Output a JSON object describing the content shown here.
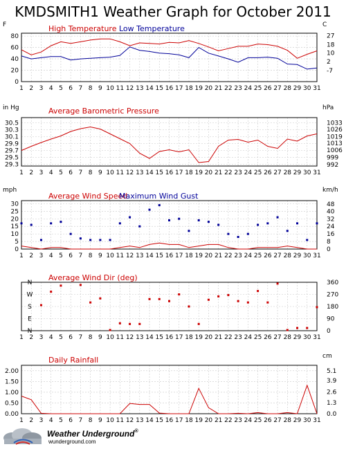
{
  "title": "KMDSMITH1 Weather Graph for October 2011",
  "logo": {
    "brand": "Weather Underground",
    "mark": "®",
    "url": "wunderground.com"
  },
  "colors": {
    "red": "#cc0000",
    "blue": "#000099",
    "frame": "#000000",
    "grid": "#c8c8c8"
  },
  "chart_data": [
    {
      "id": "temperature",
      "type": "line",
      "days": [
        1,
        2,
        3,
        4,
        5,
        6,
        7,
        8,
        9,
        10,
        11,
        12,
        13,
        14,
        15,
        16,
        17,
        18,
        19,
        20,
        21,
        22,
        23,
        24,
        25,
        26,
        27,
        28,
        29,
        30,
        31
      ],
      "left_unit": "F",
      "right_unit": "C",
      "ylim": [
        0,
        85
      ],
      "left_ticks": [
        {
          "v": 0,
          "t": "0"
        },
        {
          "v": 20,
          "t": "20"
        },
        {
          "v": 40,
          "t": "40"
        },
        {
          "v": 60,
          "t": "60"
        },
        {
          "v": 80,
          "t": "80"
        }
      ],
      "right_ticks": [
        {
          "v": 19.4,
          "t": "-7"
        },
        {
          "v": 35,
          "t": "2"
        },
        {
          "v": 50.2,
          "t": "10"
        },
        {
          "v": 64.7,
          "t": "18"
        },
        {
          "v": 80.6,
          "t": "27"
        }
      ],
      "series": [
        {
          "name": "High Temperature",
          "color": "#cc0000",
          "style": "line",
          "values": [
            56,
            47,
            52,
            63,
            70,
            67,
            70,
            73,
            75,
            75,
            70,
            63,
            68,
            67,
            66,
            69,
            68,
            72,
            67,
            61,
            54,
            58,
            62,
            62,
            66,
            65,
            62,
            55,
            41,
            48,
            54
          ]
        },
        {
          "name": "Low Temperature",
          "color": "#000099",
          "style": "line",
          "values": [
            45,
            40,
            42,
            44,
            44,
            38,
            40,
            41,
            42,
            43,
            46,
            61,
            55,
            53,
            50,
            49,
            47,
            42,
            60,
            50,
            45,
            40,
            34,
            42,
            42,
            43,
            41,
            31,
            30,
            22,
            24
          ]
        }
      ]
    },
    {
      "id": "pressure",
      "type": "line",
      "days": [
        1,
        2,
        3,
        4,
        5,
        6,
        7,
        8,
        9,
        10,
        11,
        12,
        13,
        14,
        15,
        16,
        17,
        18,
        19,
        20,
        21,
        22,
        23,
        24,
        25,
        26,
        27,
        28,
        29,
        30,
        31
      ],
      "left_unit": "in Hg",
      "right_unit": "hPa",
      "ylim": [
        29.25,
        30.65
      ],
      "left_ticks": [
        {
          "v": 29.3,
          "t": "29.3"
        },
        {
          "v": 29.5,
          "t": "29.5"
        },
        {
          "v": 29.7,
          "t": "29.7"
        },
        {
          "v": 29.9,
          "t": "29.9"
        },
        {
          "v": 30.1,
          "t": "30.1"
        },
        {
          "v": 30.3,
          "t": "30.3"
        },
        {
          "v": 30.5,
          "t": "30.5"
        }
      ],
      "right_ticks": [
        {
          "v": 29.29,
          "t": "992"
        },
        {
          "v": 29.5,
          "t": "999"
        },
        {
          "v": 29.71,
          "t": "1006"
        },
        {
          "v": 29.91,
          "t": "1013"
        },
        {
          "v": 30.1,
          "t": "1019"
        },
        {
          "v": 30.31,
          "t": "1026"
        },
        {
          "v": 30.5,
          "t": "1033"
        }
      ],
      "series": [
        {
          "name": "Average Barometric Pressure",
          "color": "#cc0000",
          "style": "line",
          "values": [
            29.7,
            29.82,
            29.93,
            30.03,
            30.12,
            30.25,
            30.33,
            30.38,
            30.32,
            30.18,
            30.04,
            29.9,
            29.62,
            29.47,
            29.67,
            29.72,
            29.66,
            29.72,
            29.35,
            29.38,
            29.82,
            30.0,
            30.02,
            29.94,
            30.0,
            29.82,
            29.76,
            30.03,
            29.97,
            30.12,
            30.18
          ]
        }
      ]
    },
    {
      "id": "wind",
      "type": "line",
      "days": [
        1,
        2,
        3,
        4,
        5,
        6,
        7,
        8,
        9,
        10,
        11,
        12,
        13,
        14,
        15,
        16,
        17,
        18,
        19,
        20,
        21,
        22,
        23,
        24,
        25,
        26,
        27,
        28,
        29,
        30,
        31
      ],
      "left_unit": "mph",
      "right_unit": "km/h",
      "ylim": [
        0,
        32
      ],
      "left_ticks": [
        {
          "v": 0,
          "t": "0"
        },
        {
          "v": 5,
          "t": "5"
        },
        {
          "v": 10,
          "t": "10"
        },
        {
          "v": 15,
          "t": "15"
        },
        {
          "v": 20,
          "t": "20"
        },
        {
          "v": 25,
          "t": "25"
        },
        {
          "v": 30,
          "t": "30"
        }
      ],
      "right_ticks": [
        {
          "v": 0,
          "t": "0"
        },
        {
          "v": 5,
          "t": "8"
        },
        {
          "v": 10,
          "t": "16"
        },
        {
          "v": 15,
          "t": "24"
        },
        {
          "v": 20,
          "t": "32"
        },
        {
          "v": 24.9,
          "t": "40"
        },
        {
          "v": 29.8,
          "t": "48"
        }
      ],
      "series": [
        {
          "name": "Average Wind Speed",
          "color": "#cc0000",
          "style": "line",
          "values": [
            2,
            1,
            0,
            1,
            1,
            0,
            0,
            0,
            0,
            0,
            1,
            2,
            1,
            3,
            4,
            3,
            3,
            1,
            2,
            3,
            3,
            1,
            0,
            0,
            1,
            1,
            1,
            2,
            1,
            0,
            0
          ]
        },
        {
          "name": "Maximum Wind Gust",
          "color": "#000099",
          "style": "dots",
          "values": [
            17,
            16,
            6,
            17,
            18,
            10,
            7,
            6,
            6,
            6,
            17,
            21,
            15,
            26,
            29,
            19,
            20,
            12,
            19,
            18,
            16,
            10,
            8,
            10,
            16,
            17,
            21,
            12,
            17,
            6,
            17
          ]
        }
      ]
    },
    {
      "id": "winddir",
      "type": "scatter",
      "days": [
        1,
        2,
        3,
        4,
        5,
        6,
        7,
        8,
        9,
        10,
        11,
        12,
        13,
        14,
        15,
        16,
        17,
        18,
        19,
        20,
        21,
        22,
        23,
        24,
        25,
        26,
        27,
        28,
        29,
        30,
        31
      ],
      "left_unit": "",
      "right_unit": "",
      "ylim": [
        0,
        360
      ],
      "compass_ticks": [
        {
          "v": 360,
          "t": "N"
        },
        {
          "v": 270,
          "t": "W"
        },
        {
          "v": 180,
          "t": "S"
        },
        {
          "v": 90,
          "t": "E"
        },
        {
          "v": 0,
          "t": "N"
        }
      ],
      "right_ticks": [
        {
          "v": 0,
          "t": "0"
        },
        {
          "v": 90,
          "t": "90"
        },
        {
          "v": 180,
          "t": "180"
        },
        {
          "v": 270,
          "t": "270"
        },
        {
          "v": 360,
          "t": "360"
        }
      ],
      "series": [
        {
          "name": "Average Wind Dir (deg)",
          "color": "#cc0000",
          "style": "dots",
          "values": [
            null,
            null,
            190,
            290,
            335,
            null,
            340,
            210,
            240,
            5,
            55,
            50,
            50,
            235,
            235,
            220,
            270,
            180,
            50,
            230,
            255,
            265,
            220,
            210,
            295,
            210,
            350,
            5,
            20,
            20,
            175
          ]
        }
      ]
    },
    {
      "id": "rain",
      "type": "line",
      "days": [
        1,
        2,
        3,
        4,
        5,
        6,
        7,
        8,
        9,
        10,
        11,
        12,
        13,
        14,
        15,
        16,
        17,
        18,
        19,
        20,
        21,
        22,
        23,
        24,
        25,
        26,
        27,
        28,
        29,
        30,
        31
      ],
      "left_unit": "in",
      "right_unit": "cm",
      "ylim": [
        0,
        2.25
      ],
      "left_ticks": [
        {
          "v": 0,
          "t": "0.00"
        },
        {
          "v": 0.5,
          "t": "0.50"
        },
        {
          "v": 1,
          "t": "1.00"
        },
        {
          "v": 1.5,
          "t": "1.50"
        },
        {
          "v": 2,
          "t": "2.00"
        }
      ],
      "right_ticks": [
        {
          "v": 0,
          "t": "0.0"
        },
        {
          "v": 0.51,
          "t": "1.3"
        },
        {
          "v": 1.02,
          "t": "2.6"
        },
        {
          "v": 1.54,
          "t": "3.9"
        },
        {
          "v": 2.0,
          "t": "5.1"
        }
      ],
      "series": [
        {
          "name": "Daily Rainfall",
          "color": "#cc0000",
          "style": "line",
          "values": [
            0.82,
            0.65,
            0.02,
            0,
            0,
            0,
            0,
            0,
            0,
            0,
            0,
            0.48,
            0.43,
            0.43,
            0.03,
            0,
            0,
            0,
            1.18,
            0.28,
            0,
            0,
            0.02,
            0,
            0.05,
            0,
            0,
            0.05,
            0,
            1.32,
            0
          ]
        }
      ]
    }
  ]
}
